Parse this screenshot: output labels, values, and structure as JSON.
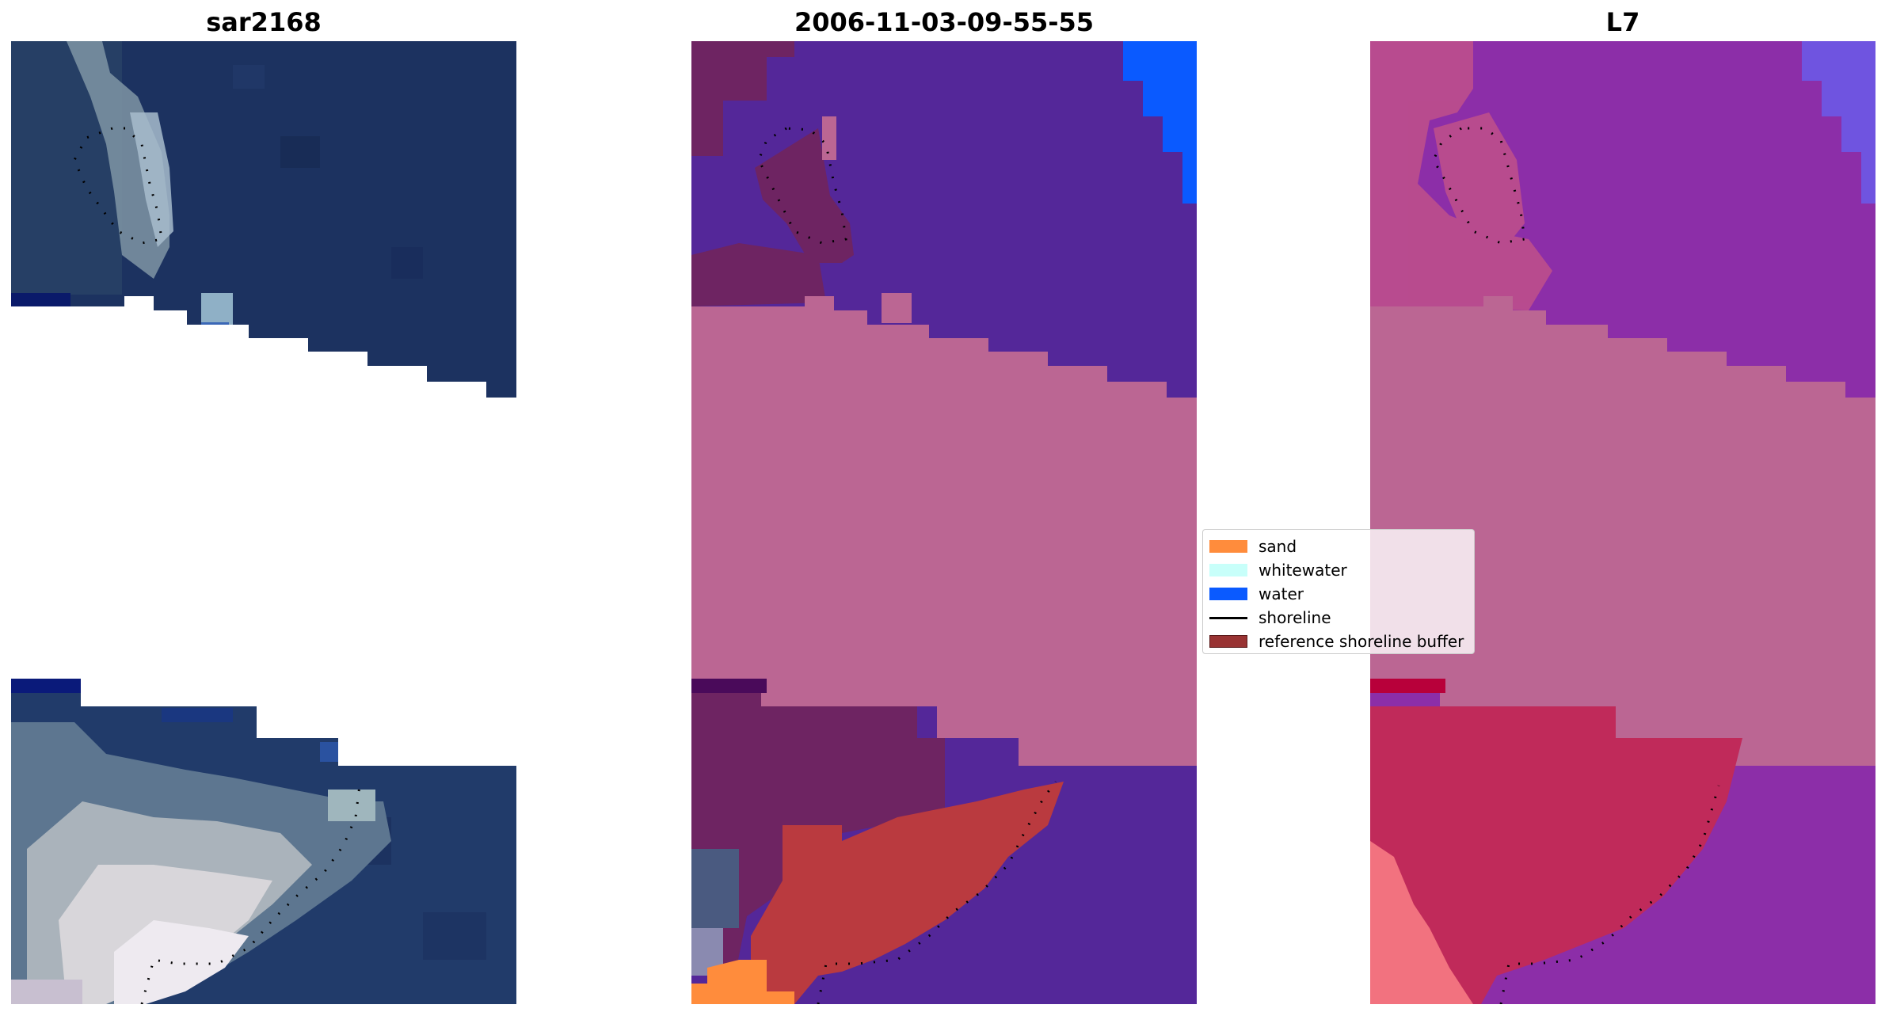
{
  "panels": [
    {
      "title": "sar2168"
    },
    {
      "title": "2006-11-03-09-55-55"
    },
    {
      "title": "L7"
    }
  ],
  "legend": {
    "items": [
      {
        "label": "sand",
        "color": "#ff8c3c",
        "shape": "patch"
      },
      {
        "label": "whitewater",
        "color": "#c8fffa",
        "shape": "patch"
      },
      {
        "label": "water",
        "color": "#0a5aff",
        "shape": "patch"
      },
      {
        "label": "shoreline",
        "color": "#000000",
        "shape": "line"
      },
      {
        "label": "reference shoreline buffer",
        "color": "#993333",
        "shape": "patch"
      }
    ]
  },
  "colors": {
    "rgb_water_dark": "#1c3260",
    "rgb_bright_surf": "#d8d6da",
    "class_background": "#542799",
    "class_masked_band": "#bb6693",
    "class_buffer_red": "#ba3a3f",
    "index_purple": "#8c2ea8",
    "index_red": "#c02a5a"
  }
}
